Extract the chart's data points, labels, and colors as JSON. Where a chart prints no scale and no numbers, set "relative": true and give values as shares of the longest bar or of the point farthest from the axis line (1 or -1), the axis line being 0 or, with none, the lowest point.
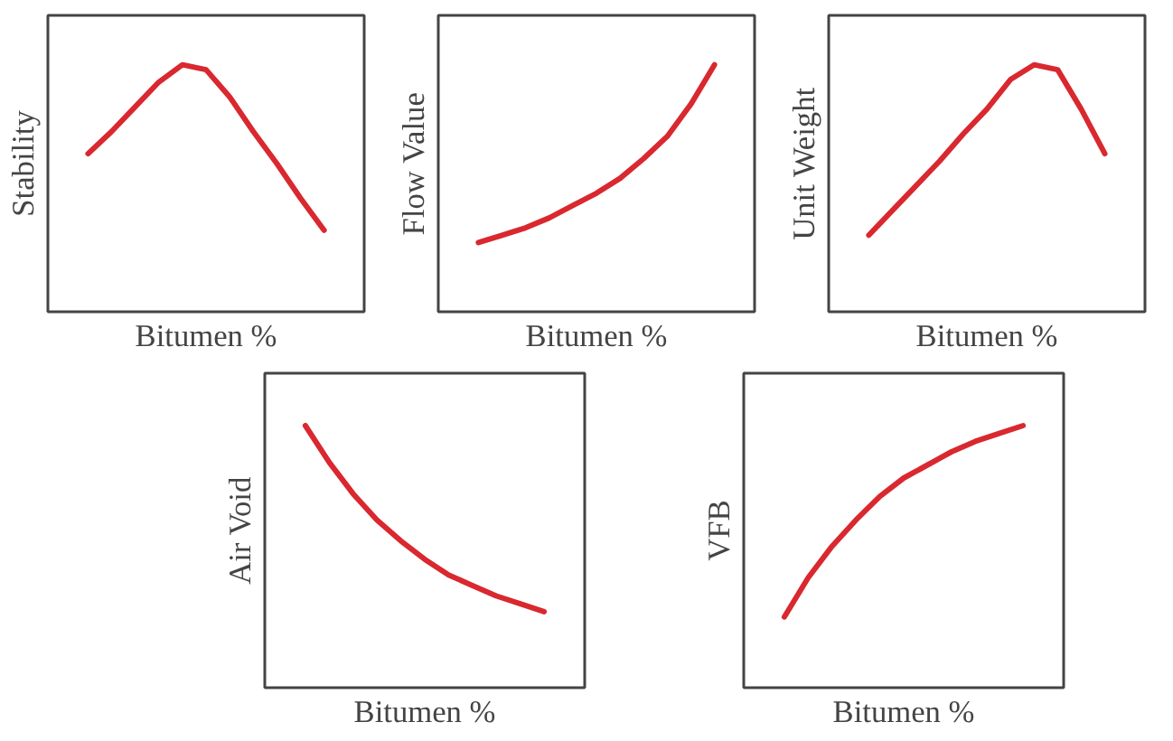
{
  "chart_data": [
    {
      "type": "line",
      "xlabel": "Bitumen %",
      "ylabel": "Stability",
      "relative": true,
      "categories": [
        null,
        null,
        null,
        null,
        null,
        null,
        null,
        null,
        null,
        null,
        null
      ],
      "series": [
        {
          "color": "#d9282f",
          "values": [
            0.64,
            0.73,
            0.83,
            0.93,
            1,
            0.98,
            0.87,
            0.73,
            0.6,
            0.46,
            0.33
          ]
        }
      ]
    },
    {
      "type": "line",
      "xlabel": "Bitumen %",
      "ylabel": "Flow Value",
      "relative": true,
      "categories": [
        null,
        null,
        null,
        null,
        null,
        null,
        null,
        null,
        null,
        null,
        null
      ],
      "series": [
        {
          "color": "#d9282f",
          "values": [
            0.28,
            0.31,
            0.34,
            0.38,
            0.43,
            0.48,
            0.54,
            0.62,
            0.71,
            0.84,
            1
          ]
        }
      ]
    },
    {
      "type": "line",
      "xlabel": "Bitumen %",
      "ylabel": "Unit Weight",
      "relative": true,
      "categories": [
        null,
        null,
        null,
        null,
        null,
        null,
        null,
        null,
        null,
        null,
        null
      ],
      "series": [
        {
          "color": "#d9282f",
          "values": [
            0.31,
            0.41,
            0.51,
            0.61,
            0.72,
            0.82,
            0.94,
            1,
            0.98,
            0.82,
            0.64
          ]
        }
      ]
    },
    {
      "type": "line",
      "xlabel": "Bitumen %",
      "ylabel": "Air Void",
      "relative": true,
      "categories": [
        null,
        null,
        null,
        null,
        null,
        null,
        null,
        null,
        null,
        null,
        null
      ],
      "series": [
        {
          "color": "#d9282f",
          "values": [
            1,
            0.86,
            0.74,
            0.64,
            0.56,
            0.49,
            0.43,
            0.39,
            0.35,
            0.32,
            0.29
          ]
        }
      ]
    },
    {
      "type": "line",
      "xlabel": "Bitumen %",
      "ylabel": "VFB",
      "relative": true,
      "categories": [
        null,
        null,
        null,
        null,
        null,
        null,
        null,
        null,
        null,
        null,
        null
      ],
      "series": [
        {
          "color": "#d9282f",
          "values": [
            0.27,
            0.42,
            0.54,
            0.64,
            0.73,
            0.8,
            0.85,
            0.9,
            0.94,
            0.97,
            1
          ]
        }
      ]
    }
  ]
}
